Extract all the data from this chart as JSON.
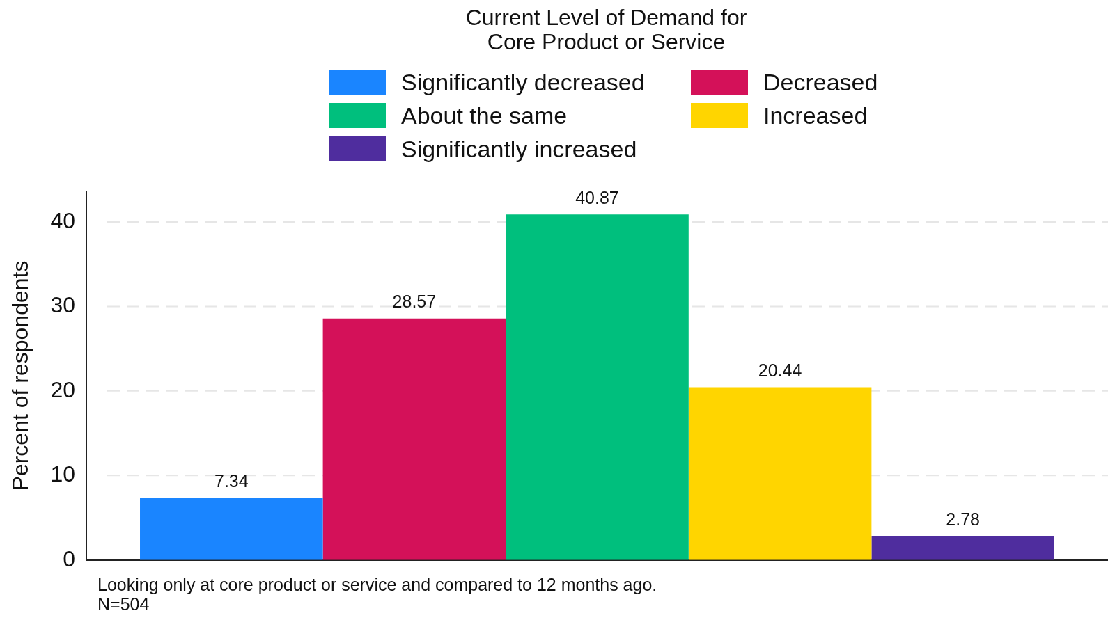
{
  "chart_data": {
    "type": "bar",
    "title": "Current Level of Demand for\nCore Product or Service",
    "ylabel": "Percent of respondents",
    "categories": [
      null
    ],
    "series": [
      {
        "name": "Significantly decreased",
        "color": "#1a85ff",
        "values": [
          7.34
        ]
      },
      {
        "name": "Decreased",
        "color": "#d41159",
        "values": [
          28.57
        ]
      },
      {
        "name": "About the same",
        "color": "#00bf7d",
        "values": [
          40.87
        ]
      },
      {
        "name": "Increased",
        "color": "#ffd500",
        "values": [
          20.44
        ]
      },
      {
        "name": "Significantly increased",
        "color": "#4f2d9e",
        "values": [
          2.78
        ]
      }
    ],
    "ylim": [
      0,
      43.6
    ],
    "yticks": [
      0,
      10,
      20,
      30,
      40
    ],
    "grid": "y",
    "legend": "top",
    "data_labels": true,
    "annotations": [
      "Looking only at core product or service and compared to 12 months ago.",
      "N=504"
    ]
  }
}
